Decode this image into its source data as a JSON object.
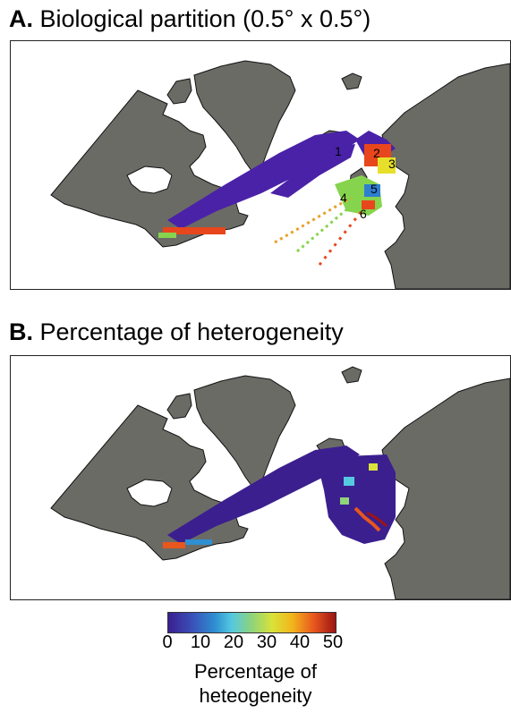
{
  "panel_a": {
    "letter": "A.",
    "title": "Biological partition (0.5° x 0.5°)",
    "region_labels": [
      "1",
      "2",
      "3",
      "4",
      "5",
      "6"
    ]
  },
  "panel_b": {
    "letter": "B.",
    "title": "Percentage of heterogeneity"
  },
  "colorbar": {
    "ticks": [
      "0",
      "10",
      "20",
      "30",
      "40",
      "50"
    ],
    "label_line1": "Percentage of",
    "label_line2": "heteogeneity",
    "min": 0,
    "max": 50,
    "colors": [
      "#3b1f8f",
      "#3a4fb8",
      "#2e8fd1",
      "#55c9e0",
      "#8fd37a",
      "#d9e23a",
      "#f3b51c",
      "#e8571e",
      "#9b1414"
    ]
  },
  "colors": {
    "land": "#6b6b66",
    "ocean": "#ffffff",
    "partition_1": "#4a22a8",
    "partition_2": "#e8461c",
    "partition_3": "#e6e02a",
    "partition_4": "#86d44e",
    "partition_5": "#2d7fd0",
    "partition_6": "#e8461c"
  }
}
